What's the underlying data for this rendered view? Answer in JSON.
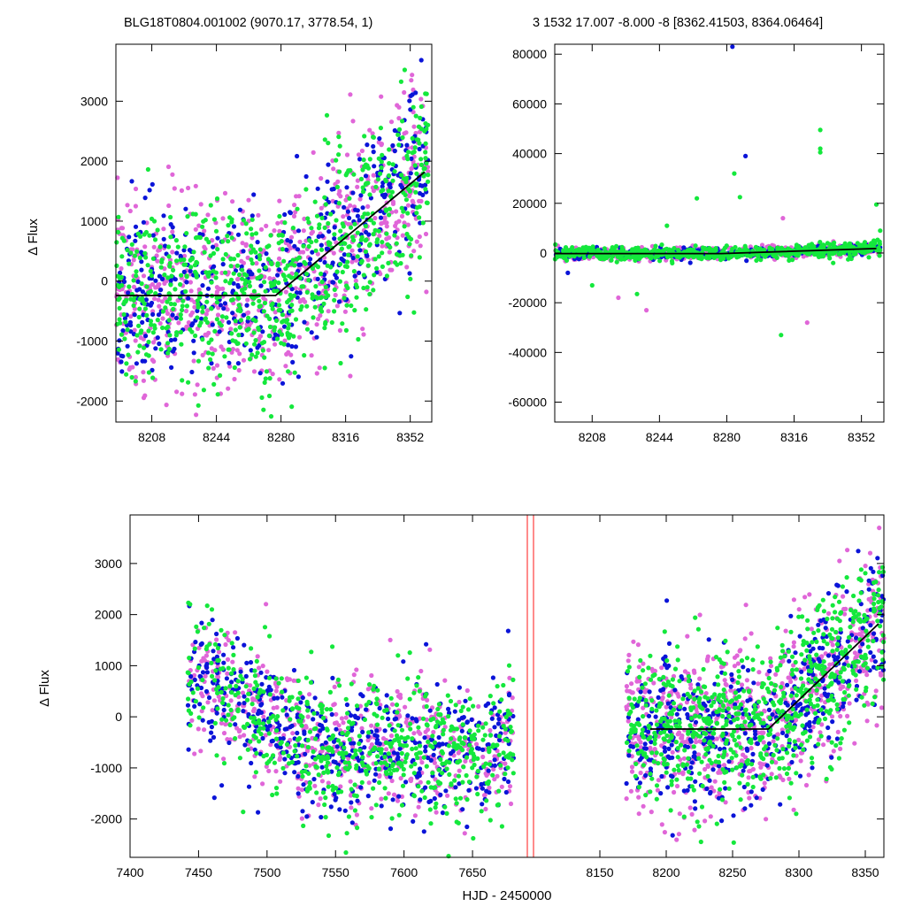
{
  "colors": {
    "magenta": "#e066d8",
    "blue": "#0a14d8",
    "green": "#14e83c",
    "fit": "#000000",
    "season_marker": "#ff4d4d"
  },
  "chart_data": [
    {
      "type": "scatter",
      "title": "BLG18T0804.001002 (9070.17, 3778.54,    1)",
      "ylabel": "Δ Flux",
      "xlim": [
        8188,
        8364
      ],
      "ylim": [
        -2350,
        3950
      ],
      "xticks": [
        8208,
        8244,
        8280,
        8316,
        8352
      ],
      "yticks": [
        -2000,
        -1000,
        0,
        1000,
        2000,
        3000
      ],
      "fit": {
        "x": [
          8188,
          8277,
          8360
        ],
        "y": [
          -240,
          -240,
          1820
        ]
      },
      "series": [
        {
          "color_key": "magenta",
          "gen": {
            "x0": 8188,
            "x1": 8362,
            "n": 700,
            "spread": 800,
            "seed": 11
          }
        },
        {
          "color_key": "blue",
          "gen": {
            "x0": 8188,
            "x1": 8362,
            "n": 450,
            "spread": 700,
            "seed": 23
          }
        },
        {
          "color_key": "green",
          "gen": {
            "x0": 8188,
            "x1": 8362,
            "n": 750,
            "spread": 750,
            "seed": 37
          }
        }
      ]
    },
    {
      "type": "scatter",
      "title": "3   1532   17.007   -8.000   -8   [8362.41503, 8364.06464]",
      "ylabel": "",
      "xlim": [
        8188,
        8364
      ],
      "ylim": [
        -68000,
        84000
      ],
      "xticks": [
        8208,
        8244,
        8280,
        8316,
        8352
      ],
      "yticks": [
        -60000,
        -40000,
        -20000,
        0,
        20000,
        40000,
        60000,
        80000
      ],
      "fit": {
        "x": [
          8188,
          8277,
          8360
        ],
        "y": [
          -240,
          -240,
          1820
        ]
      },
      "outliers": [
        {
          "x": 8284,
          "y": 32000,
          "c": "green"
        },
        {
          "x": 8290,
          "y": 39000,
          "c": "blue"
        },
        {
          "x": 8287,
          "y": 22500,
          "c": "green"
        },
        {
          "x": 8330,
          "y": 49500,
          "c": "green"
        },
        {
          "x": 8330,
          "y": 42000,
          "c": "green"
        },
        {
          "x": 8330,
          "y": 40500,
          "c": "green"
        },
        {
          "x": 8264,
          "y": 22000,
          "c": "green"
        },
        {
          "x": 8360,
          "y": 19500,
          "c": "green"
        },
        {
          "x": 8309,
          "y": -33000,
          "c": "green"
        },
        {
          "x": 8323,
          "y": -28000,
          "c": "magenta"
        },
        {
          "x": 8232,
          "y": -16500,
          "c": "green"
        },
        {
          "x": 8237,
          "y": -23000,
          "c": "magenta"
        },
        {
          "x": 8208,
          "y": -13000,
          "c": "green"
        },
        {
          "x": 8222,
          "y": -18000,
          "c": "magenta"
        },
        {
          "x": 8283,
          "y": 83000,
          "c": "blue"
        },
        {
          "x": 8335,
          "y": -68000,
          "c": "magenta"
        },
        {
          "x": 8362,
          "y": 9000,
          "c": "green"
        },
        {
          "x": 8310,
          "y": 14000,
          "c": "magenta"
        },
        {
          "x": 8195,
          "y": -8000,
          "c": "blue"
        },
        {
          "x": 8248,
          "y": 11000,
          "c": "green"
        }
      ],
      "series": [
        {
          "color_key": "magenta",
          "gen": {
            "x0": 8188,
            "x1": 8362,
            "n": 500,
            "spread": 1200,
            "seed": 51
          }
        },
        {
          "color_key": "blue",
          "gen": {
            "x0": 8188,
            "x1": 8362,
            "n": 350,
            "spread": 1000,
            "seed": 63
          }
        },
        {
          "color_key": "green",
          "gen": {
            "x0": 8188,
            "x1": 8362,
            "n": 550,
            "spread": 1400,
            "seed": 77
          }
        }
      ]
    },
    {
      "type": "scatter",
      "title": "",
      "xlabel": "HJD - 2450000",
      "ylabel": "Δ Flux",
      "ylim": [
        -2750,
        3950
      ],
      "yticks": [
        -2000,
        -1000,
        0,
        1000,
        2000,
        3000
      ],
      "broken_x": {
        "left": {
          "xlim": [
            7400,
            7690
          ],
          "xticks": [
            7400,
            7450,
            7500,
            7550,
            7600,
            7650
          ]
        },
        "right": {
          "xlim": [
            8100,
            8364
          ],
          "xticks": [
            8150,
            8200,
            8250,
            8300,
            8350
          ]
        }
      },
      "fit": {
        "x": [
          8188,
          8277,
          8360
        ],
        "y": [
          -240,
          -240,
          1820
        ]
      },
      "series": [
        {
          "color_key": "magenta",
          "gen_left": {
            "x0": 7442,
            "x1": 7680,
            "n": 550,
            "spread": 650,
            "seed": 101
          },
          "gen_right": {
            "x0": 8170,
            "x1": 8364,
            "n": 650,
            "spread": 800,
            "seed": 111
          }
        },
        {
          "color_key": "blue",
          "gen_left": {
            "x0": 7442,
            "x1": 7680,
            "n": 500,
            "spread": 620,
            "seed": 123
          },
          "gen_right": {
            "x0": 8170,
            "x1": 8364,
            "n": 450,
            "spread": 700,
            "seed": 131
          }
        },
        {
          "color_key": "green",
          "gen_left": {
            "x0": 7442,
            "x1": 7680,
            "n": 600,
            "spread": 700,
            "seed": 147
          },
          "gen_right": {
            "x0": 8170,
            "x1": 8364,
            "n": 700,
            "spread": 750,
            "seed": 159
          }
        }
      ]
    }
  ]
}
